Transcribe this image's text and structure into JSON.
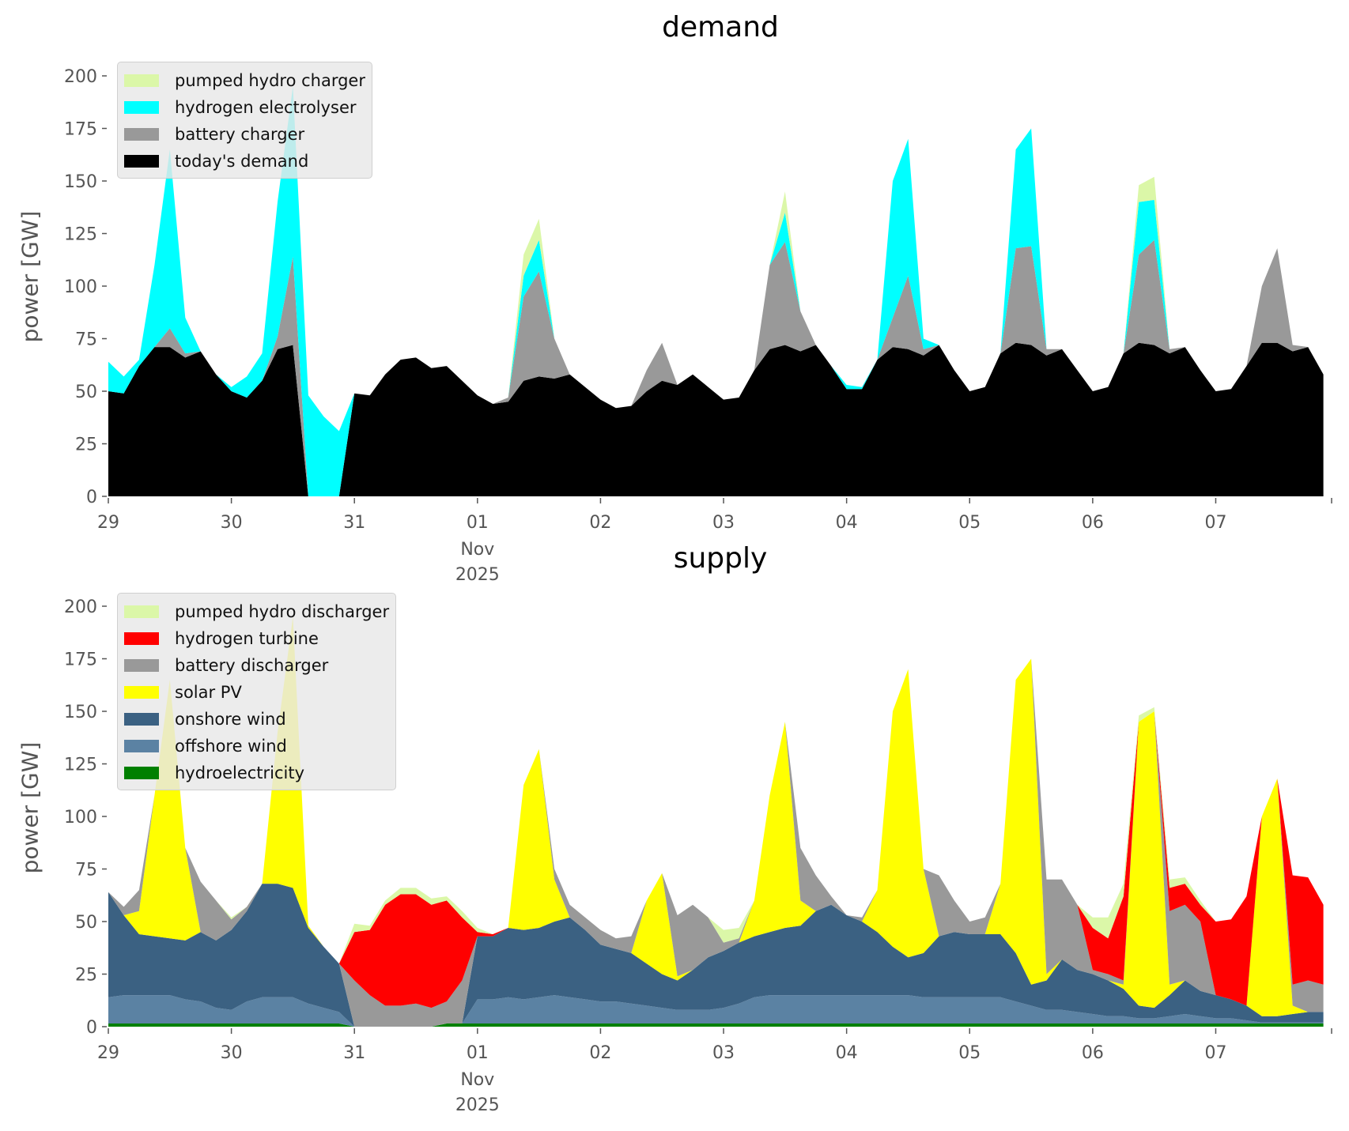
{
  "chart_data": [
    {
      "type": "area",
      "stacked": true,
      "title": "demand",
      "ylabel": "power [GW]",
      "xlabel": "",
      "ylim": [
        0,
        200
      ],
      "yticks": [
        0,
        25,
        50,
        75,
        100,
        125,
        150,
        175,
        200
      ],
      "x_hours_step": 3,
      "xlim_hours": [
        0,
        238.6
      ],
      "xtick_labels": [
        "29",
        "30",
        "31",
        "01",
        "02",
        "03",
        "04",
        "05",
        "06",
        "07"
      ],
      "xtick_sublabels": {
        "month": "Nov",
        "year": "2025",
        "under": "01"
      },
      "legend_position": "upper-left",
      "series": [
        {
          "name": "today's demand",
          "color": "#000000",
          "values": [
            50,
            49,
            62,
            71,
            71,
            66,
            69,
            58,
            50,
            47,
            55,
            70,
            72,
            0,
            0,
            0,
            49,
            48,
            58,
            65,
            66,
            61,
            62,
            55,
            48,
            44,
            45,
            55,
            57,
            56,
            58,
            52,
            46,
            42,
            43,
            50,
            55,
            53,
            58,
            52,
            46,
            47,
            60,
            70,
            72,
            69,
            72,
            62,
            51,
            51,
            65,
            71,
            70,
            67,
            72,
            60,
            50,
            52,
            68,
            73,
            72,
            67,
            70,
            60,
            50,
            52,
            68,
            73,
            72,
            68,
            71,
            60,
            50,
            51,
            62,
            73,
            73,
            69,
            71,
            58
          ]
        },
        {
          "name": "battery charger",
          "color": "#999999",
          "values": [
            0,
            0,
            0,
            0,
            9,
            2,
            0,
            0,
            0,
            0,
            0,
            6,
            42,
            0,
            0,
            0,
            0,
            0,
            0,
            0,
            0,
            0,
            0,
            0,
            0,
            0,
            2,
            40,
            50,
            19,
            0,
            0,
            0,
            0,
            0,
            10,
            18,
            0,
            0,
            0,
            0,
            0,
            0,
            40,
            49,
            19,
            0,
            0,
            0,
            0,
            0,
            14,
            35,
            3,
            0,
            0,
            0,
            0,
            0,
            45,
            47,
            3,
            0,
            0,
            0,
            0,
            0,
            42,
            50,
            2,
            0,
            0,
            0,
            0,
            0,
            27,
            45,
            3,
            0,
            0
          ]
        },
        {
          "name": "hydrogen electrolyser",
          "color": "#00ffff",
          "values": [
            14,
            8,
            3,
            39,
            85,
            17,
            0,
            0,
            2,
            10,
            13,
            64,
            81,
            48,
            38,
            31,
            0,
            0,
            0,
            0,
            0,
            0,
            0,
            0,
            0,
            0,
            0,
            10,
            15,
            0,
            0,
            0,
            0,
            0,
            0,
            0,
            0,
            0,
            0,
            0,
            0,
            0,
            0,
            0,
            14,
            0,
            0,
            0,
            2,
            1,
            0,
            65,
            65,
            5,
            0,
            0,
            0,
            0,
            0,
            47,
            56,
            0,
            0,
            0,
            0,
            0,
            0,
            25,
            19,
            0,
            0,
            0,
            0,
            0,
            0,
            0,
            0,
            0,
            0,
            0
          ]
        },
        {
          "name": "pumped hydro charger",
          "color": "#dbf7a8",
          "values": [
            0,
            0,
            0,
            0,
            0,
            0,
            0,
            0,
            0,
            0,
            0,
            0,
            0,
            0,
            0,
            0,
            0,
            0,
            0,
            0,
            0,
            0,
            0,
            0,
            0,
            0,
            0,
            10,
            10,
            0,
            0,
            0,
            0,
            0,
            0,
            0,
            0,
            0,
            0,
            0,
            0,
            0,
            0,
            0,
            10,
            0,
            0,
            0,
            0,
            0,
            0,
            0,
            0,
            0,
            0,
            0,
            0,
            0,
            0,
            0,
            0,
            0,
            0,
            0,
            0,
            0,
            0,
            8,
            11,
            0,
            0,
            0,
            0,
            0,
            0,
            0,
            0,
            0,
            0,
            0
          ]
        }
      ]
    },
    {
      "type": "area",
      "stacked": true,
      "title": "supply",
      "ylabel": "power [GW]",
      "xlabel": "",
      "ylim": [
        0,
        200
      ],
      "yticks": [
        0,
        25,
        50,
        75,
        100,
        125,
        150,
        175,
        200
      ],
      "x_hours_step": 3,
      "xlim_hours": [
        0,
        238.6
      ],
      "xtick_labels": [
        "29",
        "30",
        "31",
        "01",
        "02",
        "03",
        "04",
        "05",
        "06",
        "07"
      ],
      "xtick_sublabels": {
        "month": "Nov",
        "year": "2025",
        "under": "01"
      },
      "legend_position": "upper-left",
      "series": [
        {
          "name": "hydroelectricity",
          "color": "#008000",
          "values": [
            1.5,
            1.5,
            1.5,
            1.5,
            1.5,
            1.5,
            1.5,
            1.5,
            1.5,
            1.5,
            1.5,
            1.5,
            1.5,
            1.5,
            1.5,
            1.5,
            0,
            0,
            0,
            0,
            0,
            0,
            1.5,
            1.5,
            1.5,
            1.5,
            1.5,
            1.5,
            1.5,
            1.5,
            1.5,
            1.5,
            1.5,
            1.5,
            1.5,
            1.5,
            1.5,
            1.5,
            1.5,
            1.5,
            1.5,
            1.5,
            1.5,
            1.5,
            1.5,
            1.5,
            1.5,
            1.5,
            1.5,
            1.5,
            1.5,
            1.5,
            1.5,
            1.5,
            1.5,
            1.5,
            1.5,
            1.5,
            1.5,
            1.5,
            1.5,
            1.5,
            1.5,
            1.5,
            1.5,
            1.5,
            1.5,
            1.5,
            1.5,
            1.5,
            1.5,
            1.5,
            1.5,
            1.5,
            1.5,
            1.5,
            1.5,
            1.5,
            1.5,
            1.5
          ]
        },
        {
          "name": "offshore wind",
          "color": "#5b82a3",
          "values": [
            12.5,
            13.5,
            13.5,
            13.5,
            13.5,
            11.5,
            10.5,
            7.5,
            6.5,
            10.5,
            12.5,
            12.5,
            12.5,
            9.5,
            7.5,
            5.5,
            0,
            0,
            0,
            0,
            0,
            0,
            0,
            0,
            11.5,
            11.5,
            12.5,
            11.5,
            12.5,
            13.5,
            12.5,
            11.5,
            10.5,
            10.5,
            9.5,
            8.5,
            7.5,
            6.5,
            6.5,
            6.5,
            7.5,
            9.5,
            12.5,
            13.5,
            13.5,
            13.5,
            13.5,
            13.5,
            13.5,
            13.5,
            13.5,
            13.5,
            13.5,
            12.5,
            12.5,
            12.5,
            12.5,
            12.5,
            12.5,
            10.5,
            8.5,
            6.5,
            6.5,
            5.5,
            4.5,
            3.5,
            3.5,
            2.5,
            2.5,
            3.5,
            4.5,
            3.5,
            2.5,
            2.5,
            1.5,
            0.5,
            0.5,
            0.5,
            0.5,
            0.5
          ]
        },
        {
          "name": "onshore wind",
          "color": "#3b6182",
          "values": [
            50,
            38,
            29,
            28,
            27,
            28,
            33,
            32,
            38,
            43,
            54,
            54,
            52,
            36,
            29,
            23,
            0,
            0,
            0,
            0,
            0,
            0,
            0,
            0,
            30,
            30,
            33,
            33,
            33,
            35,
            38,
            33,
            27,
            25,
            24,
            20,
            16,
            14,
            19,
            25,
            27,
            29,
            29,
            30,
            32,
            33,
            40,
            43,
            38,
            35,
            30,
            23,
            18,
            21,
            29,
            31,
            30,
            30,
            30,
            23,
            10,
            14,
            24,
            20,
            19,
            17,
            13,
            6,
            5,
            10,
            16,
            12,
            11,
            9,
            7,
            3,
            3,
            4,
            5,
            5
          ]
        },
        {
          "name": "solar PV",
          "color": "#ffff00",
          "values": [
            0,
            0,
            11,
            67,
            123,
            44,
            0,
            0,
            0,
            0,
            0,
            72,
            129,
            1,
            0,
            0,
            0,
            0,
            0,
            0,
            0,
            0,
            0,
            0,
            0,
            0,
            0,
            69,
            85,
            20,
            0,
            0,
            0,
            0,
            0,
            30,
            48,
            2,
            0,
            0,
            0,
            0,
            17,
            65,
            98,
            12,
            0,
            0,
            0,
            0,
            20,
            112,
            137,
            40,
            0,
            0,
            0,
            0,
            24,
            130,
            155,
            3,
            0,
            0,
            0,
            0,
            2,
            135,
            141,
            5,
            0,
            0,
            0,
            0,
            0,
            95,
            113,
            4,
            0,
            0
          ]
        },
        {
          "name": "battery discharger",
          "color": "#999999",
          "values": [
            0,
            4,
            10,
            0,
            0,
            0,
            24,
            19,
            5,
            2,
            0,
            0,
            0,
            0,
            0,
            0,
            22,
            15,
            10,
            10,
            11,
            9,
            10.5,
            20.5,
            0,
            0,
            0,
            0,
            0,
            5,
            6,
            6,
            7,
            5,
            8,
            0,
            0,
            29,
            31,
            19,
            4,
            2,
            0,
            0,
            0,
            25,
            17,
            4,
            0,
            2,
            0,
            0,
            0,
            0,
            29,
            15,
            6,
            8,
            0,
            0,
            0,
            45,
            38,
            31,
            2,
            3,
            2,
            0,
            0,
            35,
            36,
            33,
            0,
            0,
            0,
            0,
            0,
            10,
            15,
            13
          ]
        },
        {
          "name": "hydrogen turbine",
          "color": "#ff0000",
          "values": [
            0,
            0,
            0,
            0,
            0,
            0,
            0,
            0,
            0,
            0,
            0,
            0,
            0,
            0,
            0,
            0,
            23,
            31,
            48,
            53,
            52,
            49,
            48,
            30,
            2,
            1,
            0,
            0,
            0,
            0,
            0,
            0,
            0,
            0,
            0,
            0,
            0,
            0,
            0,
            0,
            0,
            0,
            0,
            0,
            0,
            0,
            0,
            0,
            0,
            0,
            0,
            0,
            0,
            0,
            0,
            0,
            0,
            0,
            0,
            0,
            0,
            0,
            0,
            0,
            20,
            17,
            40,
            0,
            0,
            11,
            10,
            8,
            35,
            38,
            52,
            0,
            0,
            52,
            49,
            38
          ]
        },
        {
          "name": "pumped hydro discharger",
          "color": "#dbf7a8",
          "values": [
            0,
            0,
            0,
            0,
            0,
            0,
            0,
            0,
            1,
            0,
            0,
            0,
            0,
            0,
            0,
            0,
            4,
            2,
            2,
            3,
            3,
            3,
            2,
            3,
            2,
            0,
            0,
            0,
            0,
            0,
            0,
            0,
            0,
            0,
            0,
            0,
            0,
            0,
            0,
            0,
            6,
            5,
            0,
            0,
            0,
            0,
            0,
            0,
            0,
            0,
            0,
            0,
            0,
            0,
            0,
            0,
            0,
            0,
            0,
            0,
            0,
            0,
            0,
            0,
            5,
            10,
            6,
            3,
            2,
            4,
            3,
            2,
            0,
            0,
            0,
            0,
            0,
            0,
            0,
            0
          ]
        }
      ]
    }
  ]
}
